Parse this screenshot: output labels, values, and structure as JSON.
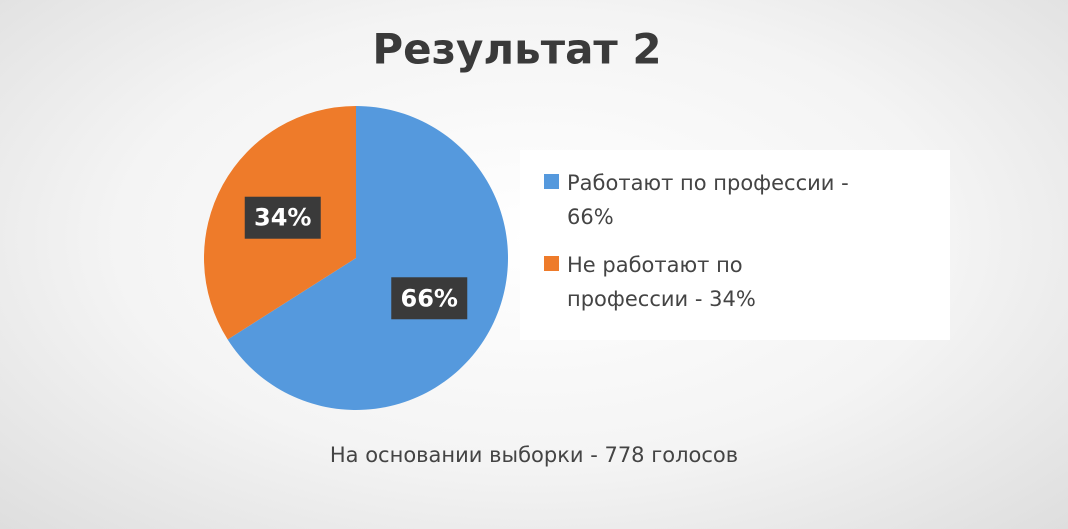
{
  "chart_data": {
    "type": "pie",
    "title": "Результат 2",
    "categories": [
      "Работают по профессии - 66%",
      "Не работают по профессии - 34%"
    ],
    "values": [
      66,
      34
    ],
    "value_labels": [
      "66%",
      "34%"
    ],
    "colors": [
      "#5599dd",
      "#ee7b2a"
    ],
    "note": "На основании выборки - 778 голосов"
  }
}
